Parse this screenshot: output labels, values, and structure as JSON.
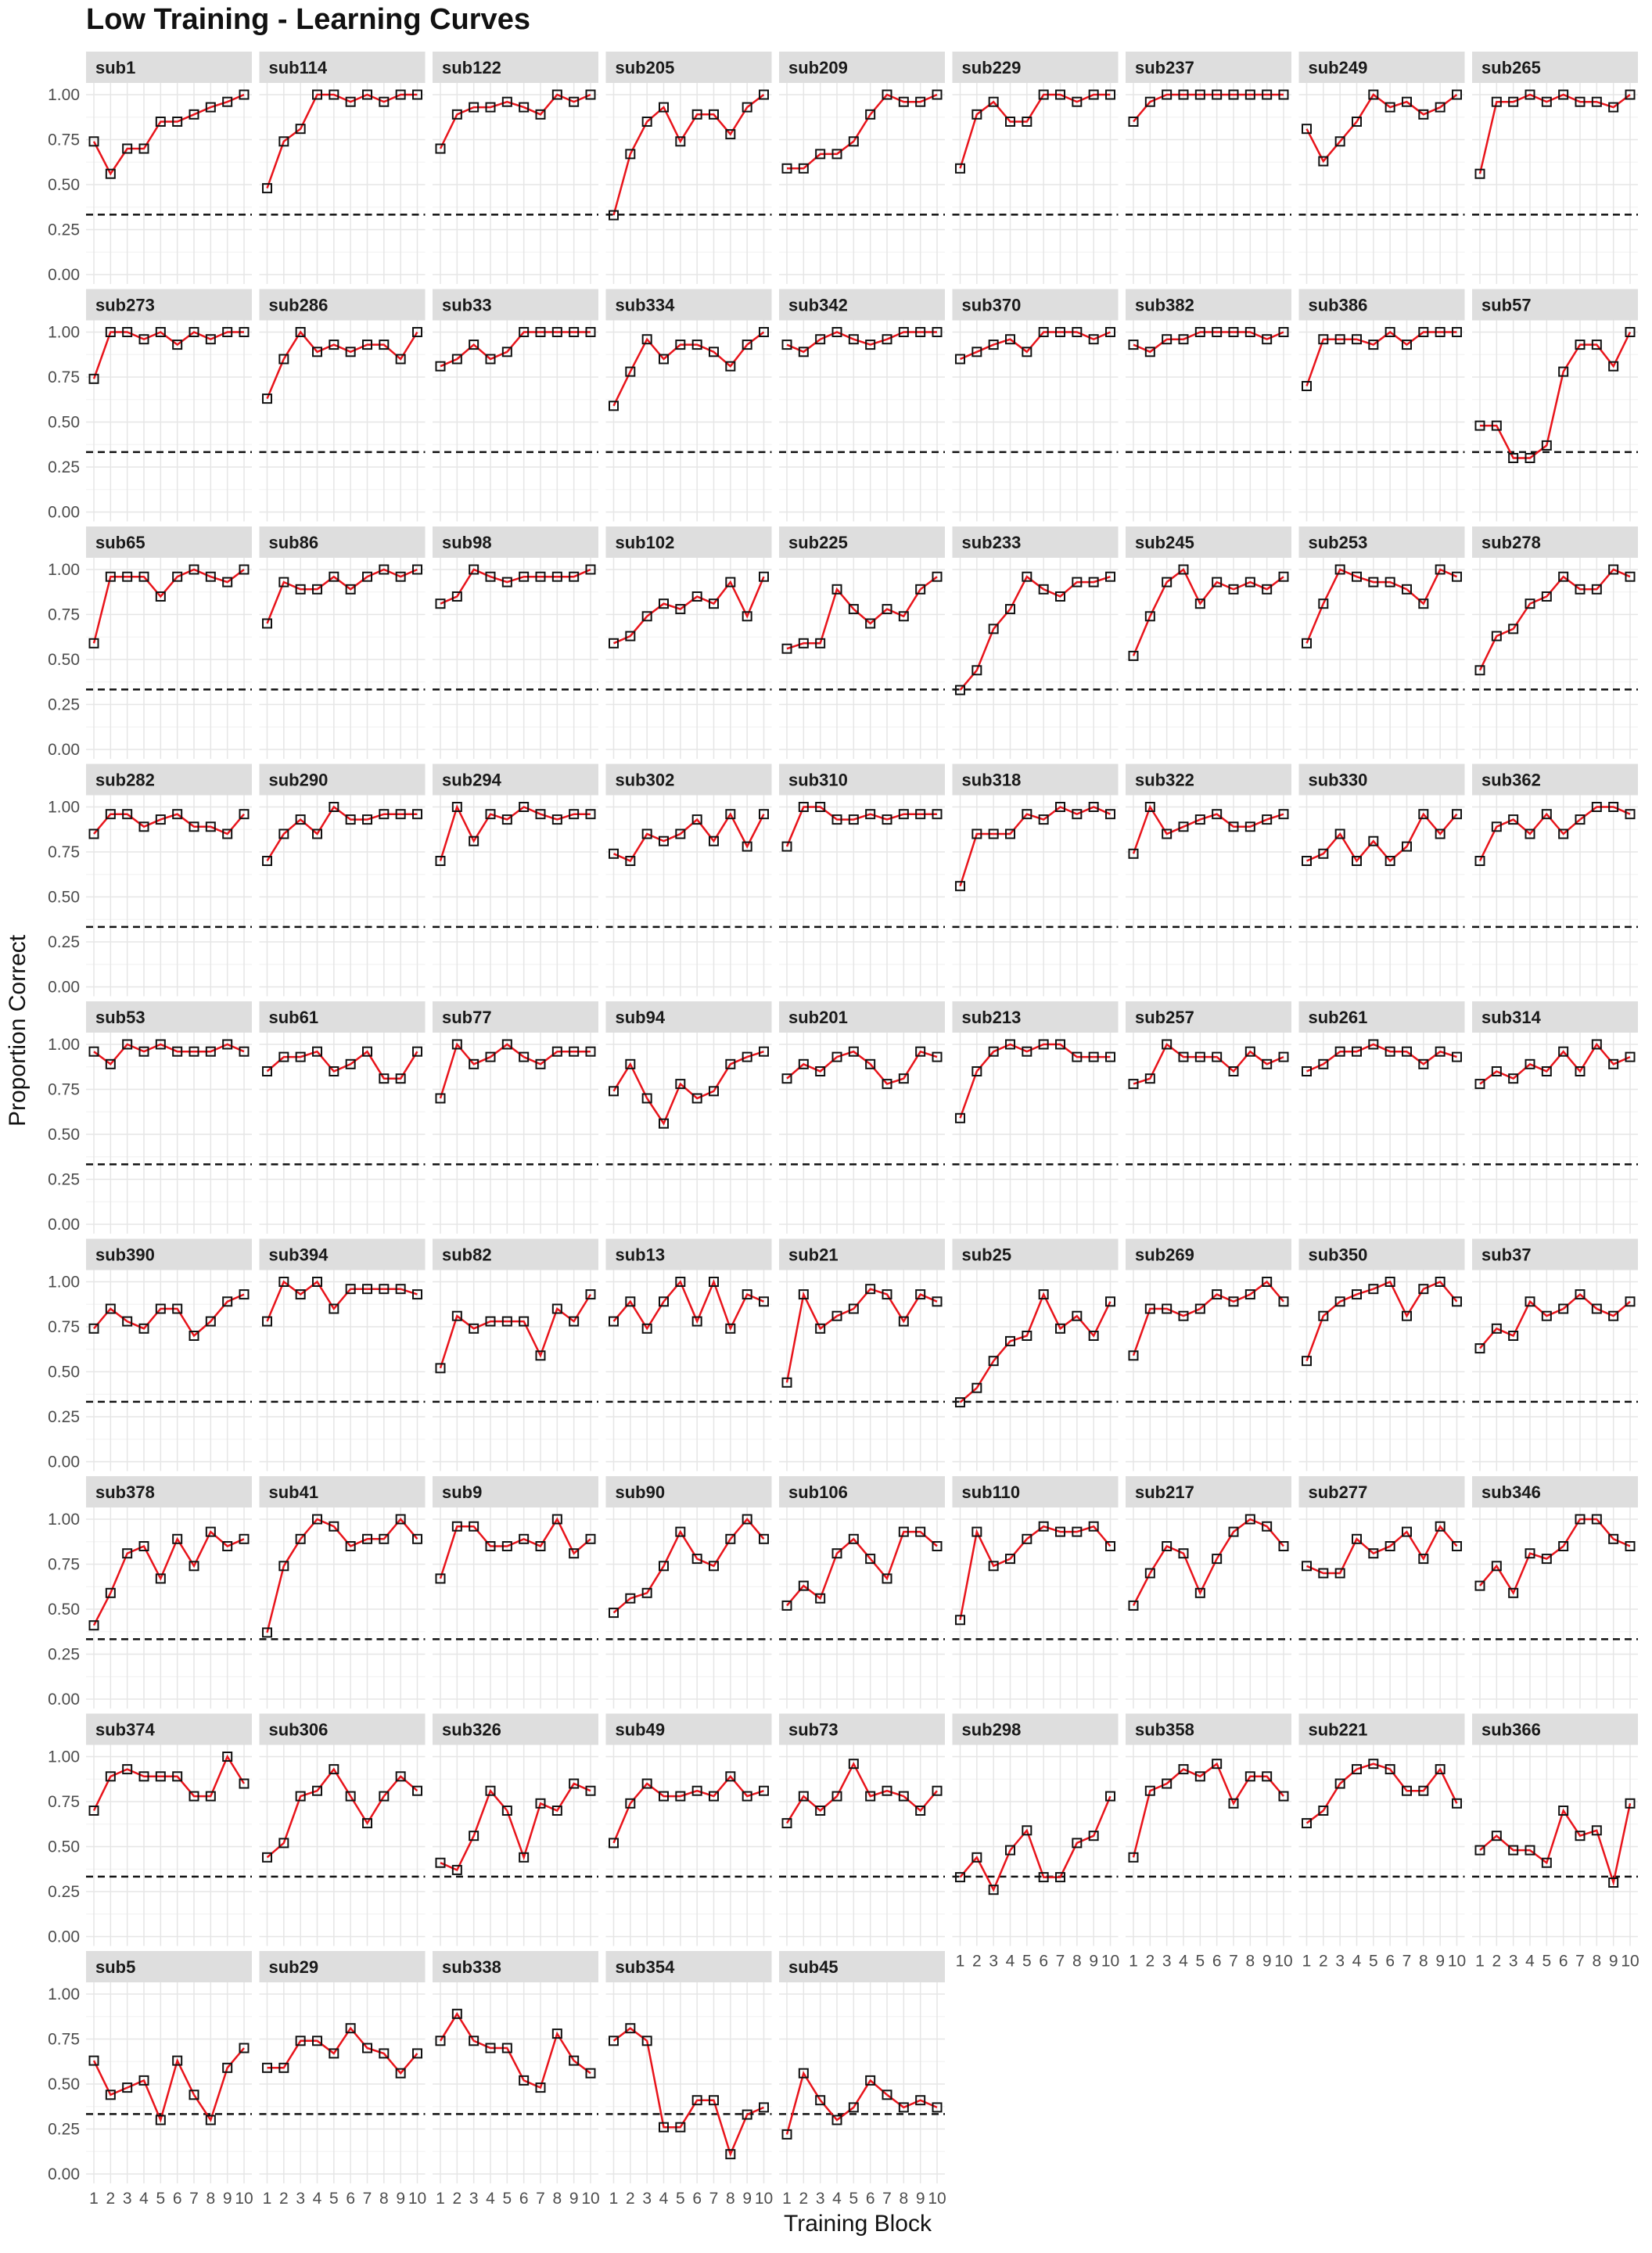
{
  "chart_data": {
    "type": "line",
    "title": "Low Training - Learning Curves",
    "xlabel": "Training Block",
    "ylabel": "Proportion Correct",
    "x": [
      1,
      2,
      3,
      4,
      5,
      6,
      7,
      8,
      9,
      10
    ],
    "x_tick_labels": [
      "1",
      "2",
      "3",
      "4",
      "5",
      "6",
      "7",
      "8",
      "9",
      "10"
    ],
    "y_ticks": [
      "0.00",
      "0.25",
      "0.50",
      "0.75",
      "1.00"
    ],
    "ylim": [
      0,
      1
    ],
    "chance_level": 0.333,
    "chance_style": "dashed",
    "line_color": "#e8141b",
    "point_style": "open square",
    "grid": true,
    "panels": [
      {
        "name": "sub1",
        "values": [
          0.74,
          0.56,
          0.7,
          0.7,
          0.85,
          0.85,
          0.89,
          0.93,
          0.96,
          1.0
        ]
      },
      {
        "name": "sub114",
        "values": [
          0.48,
          0.74,
          0.81,
          1.0,
          1.0,
          0.96,
          1.0,
          0.96,
          1.0,
          1.0
        ]
      },
      {
        "name": "sub122",
        "values": [
          0.7,
          0.89,
          0.93,
          0.93,
          0.96,
          0.93,
          0.89,
          1.0,
          0.96,
          1.0
        ]
      },
      {
        "name": "sub205",
        "values": [
          0.33,
          0.67,
          0.85,
          0.93,
          0.74,
          0.89,
          0.89,
          0.78,
          0.93,
          1.0
        ]
      },
      {
        "name": "sub209",
        "values": [
          0.59,
          0.59,
          0.67,
          0.67,
          0.74,
          0.89,
          1.0,
          0.96,
          0.96,
          1.0
        ]
      },
      {
        "name": "sub229",
        "values": [
          0.59,
          0.89,
          0.96,
          0.85,
          0.85,
          1.0,
          1.0,
          0.96,
          1.0,
          1.0
        ]
      },
      {
        "name": "sub237",
        "values": [
          0.85,
          0.96,
          1.0,
          1.0,
          1.0,
          1.0,
          1.0,
          1.0,
          1.0,
          1.0
        ]
      },
      {
        "name": "sub249",
        "values": [
          0.81,
          0.63,
          0.74,
          0.85,
          1.0,
          0.93,
          0.96,
          0.89,
          0.93,
          1.0
        ]
      },
      {
        "name": "sub265",
        "values": [
          0.56,
          0.96,
          0.96,
          1.0,
          0.96,
          1.0,
          0.96,
          0.96,
          0.93,
          1.0
        ]
      },
      {
        "name": "sub273",
        "values": [
          0.74,
          1.0,
          1.0,
          0.96,
          1.0,
          0.93,
          1.0,
          0.96,
          1.0,
          1.0
        ]
      },
      {
        "name": "sub286",
        "values": [
          0.63,
          0.85,
          1.0,
          0.89,
          0.93,
          0.89,
          0.93,
          0.93,
          0.85,
          1.0
        ]
      },
      {
        "name": "sub33",
        "values": [
          0.81,
          0.85,
          0.93,
          0.85,
          0.89,
          1.0,
          1.0,
          1.0,
          1.0,
          1.0
        ]
      },
      {
        "name": "sub334",
        "values": [
          0.59,
          0.78,
          0.96,
          0.85,
          0.93,
          0.93,
          0.89,
          0.81,
          0.93,
          1.0
        ]
      },
      {
        "name": "sub342",
        "values": [
          0.93,
          0.89,
          0.96,
          1.0,
          0.96,
          0.93,
          0.96,
          1.0,
          1.0,
          1.0
        ]
      },
      {
        "name": "sub370",
        "values": [
          0.85,
          0.89,
          0.93,
          0.96,
          0.89,
          1.0,
          1.0,
          1.0,
          0.96,
          1.0
        ]
      },
      {
        "name": "sub382",
        "values": [
          0.93,
          0.89,
          0.96,
          0.96,
          1.0,
          1.0,
          1.0,
          1.0,
          0.96,
          1.0
        ]
      },
      {
        "name": "sub386",
        "values": [
          0.7,
          0.96,
          0.96,
          0.96,
          0.93,
          1.0,
          0.93,
          1.0,
          1.0,
          1.0
        ]
      },
      {
        "name": "sub57",
        "values": [
          0.48,
          0.48,
          0.3,
          0.3,
          0.37,
          0.78,
          0.93,
          0.93,
          0.81,
          1.0
        ]
      },
      {
        "name": "sub65",
        "values": [
          0.59,
          0.96,
          0.96,
          0.96,
          0.85,
          0.96,
          1.0,
          0.96,
          0.93,
          1.0
        ]
      },
      {
        "name": "sub86",
        "values": [
          0.7,
          0.93,
          0.89,
          0.89,
          0.96,
          0.89,
          0.96,
          1.0,
          0.96,
          1.0
        ]
      },
      {
        "name": "sub98",
        "values": [
          0.81,
          0.85,
          1.0,
          0.96,
          0.93,
          0.96,
          0.96,
          0.96,
          0.96,
          1.0
        ]
      },
      {
        "name": "sub102",
        "values": [
          0.59,
          0.63,
          0.74,
          0.81,
          0.78,
          0.85,
          0.81,
          0.93,
          0.74,
          0.96
        ]
      },
      {
        "name": "sub225",
        "values": [
          0.56,
          0.59,
          0.59,
          0.89,
          0.78,
          0.7,
          0.78,
          0.74,
          0.89,
          0.96
        ]
      },
      {
        "name": "sub233",
        "values": [
          0.33,
          0.44,
          0.67,
          0.78,
          0.96,
          0.89,
          0.85,
          0.93,
          0.93,
          0.96
        ]
      },
      {
        "name": "sub245",
        "values": [
          0.52,
          0.74,
          0.93,
          1.0,
          0.81,
          0.93,
          0.89,
          0.93,
          0.89,
          0.96
        ]
      },
      {
        "name": "sub253",
        "values": [
          0.59,
          0.81,
          1.0,
          0.96,
          0.93,
          0.93,
          0.89,
          0.81,
          1.0,
          0.96
        ]
      },
      {
        "name": "sub278",
        "values": [
          0.44,
          0.63,
          0.67,
          0.81,
          0.85,
          0.96,
          0.89,
          0.89,
          1.0,
          0.96
        ]
      },
      {
        "name": "sub282",
        "values": [
          0.85,
          0.96,
          0.96,
          0.89,
          0.93,
          0.96,
          0.89,
          0.89,
          0.85,
          0.96
        ]
      },
      {
        "name": "sub290",
        "values": [
          0.7,
          0.85,
          0.93,
          0.85,
          1.0,
          0.93,
          0.93,
          0.96,
          0.96,
          0.96
        ]
      },
      {
        "name": "sub294",
        "values": [
          0.7,
          1.0,
          0.81,
          0.96,
          0.93,
          1.0,
          0.96,
          0.93,
          0.96,
          0.96
        ]
      },
      {
        "name": "sub302",
        "values": [
          0.74,
          0.7,
          0.85,
          0.81,
          0.85,
          0.93,
          0.81,
          0.96,
          0.78,
          0.96
        ]
      },
      {
        "name": "sub310",
        "values": [
          0.78,
          1.0,
          1.0,
          0.93,
          0.93,
          0.96,
          0.93,
          0.96,
          0.96,
          0.96
        ]
      },
      {
        "name": "sub318",
        "values": [
          0.56,
          0.85,
          0.85,
          0.85,
          0.96,
          0.93,
          1.0,
          0.96,
          1.0,
          0.96
        ]
      },
      {
        "name": "sub322",
        "values": [
          0.74,
          1.0,
          0.85,
          0.89,
          0.93,
          0.96,
          0.89,
          0.89,
          0.93,
          0.96
        ]
      },
      {
        "name": "sub330",
        "values": [
          0.7,
          0.74,
          0.85,
          0.7,
          0.81,
          0.7,
          0.78,
          0.96,
          0.85,
          0.96
        ]
      },
      {
        "name": "sub362",
        "values": [
          0.7,
          0.89,
          0.93,
          0.85,
          0.96,
          0.85,
          0.93,
          1.0,
          1.0,
          0.96
        ]
      },
      {
        "name": "sub53",
        "values": [
          0.96,
          0.89,
          1.0,
          0.96,
          1.0,
          0.96,
          0.96,
          0.96,
          1.0,
          0.96
        ]
      },
      {
        "name": "sub61",
        "values": [
          0.85,
          0.93,
          0.93,
          0.96,
          0.85,
          0.89,
          0.96,
          0.81,
          0.81,
          0.96
        ]
      },
      {
        "name": "sub77",
        "values": [
          0.7,
          1.0,
          0.89,
          0.93,
          1.0,
          0.93,
          0.89,
          0.96,
          0.96,
          0.96
        ]
      },
      {
        "name": "sub94",
        "values": [
          0.74,
          0.89,
          0.7,
          0.56,
          0.78,
          0.7,
          0.74,
          0.89,
          0.93,
          0.96
        ]
      },
      {
        "name": "sub201",
        "values": [
          0.81,
          0.89,
          0.85,
          0.93,
          0.96,
          0.89,
          0.78,
          0.81,
          0.96,
          0.93
        ]
      },
      {
        "name": "sub213",
        "values": [
          0.59,
          0.85,
          0.96,
          1.0,
          0.96,
          1.0,
          1.0,
          0.93,
          0.93,
          0.93
        ]
      },
      {
        "name": "sub257",
        "values": [
          0.78,
          0.81,
          1.0,
          0.93,
          0.93,
          0.93,
          0.85,
          0.96,
          0.89,
          0.93
        ]
      },
      {
        "name": "sub261",
        "values": [
          0.85,
          0.89,
          0.96,
          0.96,
          1.0,
          0.96,
          0.96,
          0.89,
          0.96,
          0.93
        ]
      },
      {
        "name": "sub314",
        "values": [
          0.78,
          0.85,
          0.81,
          0.89,
          0.85,
          0.96,
          0.85,
          1.0,
          0.89,
          0.93
        ]
      },
      {
        "name": "sub390",
        "values": [
          0.74,
          0.85,
          0.78,
          0.74,
          0.85,
          0.85,
          0.7,
          0.78,
          0.89,
          0.93
        ]
      },
      {
        "name": "sub394",
        "values": [
          0.78,
          1.0,
          0.93,
          1.0,
          0.85,
          0.96,
          0.96,
          0.96,
          0.96,
          0.93
        ]
      },
      {
        "name": "sub82",
        "values": [
          0.52,
          0.81,
          0.74,
          0.78,
          0.78,
          0.78,
          0.59,
          0.85,
          0.78,
          0.93
        ]
      },
      {
        "name": "sub13",
        "values": [
          0.78,
          0.89,
          0.74,
          0.89,
          1.0,
          0.78,
          1.0,
          0.74,
          0.93,
          0.89
        ]
      },
      {
        "name": "sub21",
        "values": [
          0.44,
          0.93,
          0.74,
          0.81,
          0.85,
          0.96,
          0.93,
          0.78,
          0.93,
          0.89
        ]
      },
      {
        "name": "sub25",
        "values": [
          0.33,
          0.41,
          0.56,
          0.67,
          0.7,
          0.93,
          0.74,
          0.81,
          0.7,
          0.89
        ]
      },
      {
        "name": "sub269",
        "values": [
          0.59,
          0.85,
          0.85,
          0.81,
          0.85,
          0.93,
          0.89,
          0.93,
          1.0,
          0.89
        ]
      },
      {
        "name": "sub350",
        "values": [
          0.56,
          0.81,
          0.89,
          0.93,
          0.96,
          1.0,
          0.81,
          0.96,
          1.0,
          0.89
        ]
      },
      {
        "name": "sub37",
        "values": [
          0.63,
          0.74,
          0.7,
          0.89,
          0.81,
          0.85,
          0.93,
          0.85,
          0.81,
          0.89
        ]
      },
      {
        "name": "sub378",
        "values": [
          0.41,
          0.59,
          0.81,
          0.85,
          0.67,
          0.89,
          0.74,
          0.93,
          0.85,
          0.89
        ]
      },
      {
        "name": "sub41",
        "values": [
          0.37,
          0.74,
          0.89,
          1.0,
          0.96,
          0.85,
          0.89,
          0.89,
          1.0,
          0.89
        ]
      },
      {
        "name": "sub9",
        "values": [
          0.67,
          0.96,
          0.96,
          0.85,
          0.85,
          0.89,
          0.85,
          1.0,
          0.81,
          0.89
        ]
      },
      {
        "name": "sub90",
        "values": [
          0.48,
          0.56,
          0.59,
          0.74,
          0.93,
          0.78,
          0.74,
          0.89,
          1.0,
          0.89
        ]
      },
      {
        "name": "sub106",
        "values": [
          0.52,
          0.63,
          0.56,
          0.81,
          0.89,
          0.78,
          0.67,
          0.93,
          0.93,
          0.85
        ]
      },
      {
        "name": "sub110",
        "values": [
          0.44,
          0.93,
          0.74,
          0.78,
          0.89,
          0.96,
          0.93,
          0.93,
          0.96,
          0.85
        ]
      },
      {
        "name": "sub217",
        "values": [
          0.52,
          0.7,
          0.85,
          0.81,
          0.59,
          0.78,
          0.93,
          1.0,
          0.96,
          0.85
        ]
      },
      {
        "name": "sub277",
        "values": [
          0.74,
          0.7,
          0.7,
          0.89,
          0.81,
          0.85,
          0.93,
          0.78,
          0.96,
          0.85
        ]
      },
      {
        "name": "sub346",
        "values": [
          0.63,
          0.74,
          0.59,
          0.81,
          0.78,
          0.85,
          1.0,
          1.0,
          0.89,
          0.85
        ]
      },
      {
        "name": "sub374",
        "values": [
          0.7,
          0.89,
          0.93,
          0.89,
          0.89,
          0.89,
          0.78,
          0.78,
          1.0,
          0.85
        ]
      },
      {
        "name": "sub306",
        "values": [
          0.44,
          0.52,
          0.78,
          0.81,
          0.93,
          0.78,
          0.63,
          0.78,
          0.89,
          0.81
        ]
      },
      {
        "name": "sub326",
        "values": [
          0.41,
          0.37,
          0.56,
          0.81,
          0.7,
          0.44,
          0.74,
          0.7,
          0.85,
          0.81
        ]
      },
      {
        "name": "sub49",
        "values": [
          0.52,
          0.74,
          0.85,
          0.78,
          0.78,
          0.81,
          0.78,
          0.89,
          0.78,
          0.81
        ]
      },
      {
        "name": "sub73",
        "values": [
          0.63,
          0.78,
          0.7,
          0.78,
          0.96,
          0.78,
          0.81,
          0.78,
          0.7,
          0.81
        ]
      },
      {
        "name": "sub298",
        "values": [
          0.33,
          0.44,
          0.26,
          0.48,
          0.59,
          0.33,
          0.33,
          0.52,
          0.56,
          0.78
        ]
      },
      {
        "name": "sub358",
        "values": [
          0.44,
          0.81,
          0.85,
          0.93,
          0.89,
          0.96,
          0.74,
          0.89,
          0.89,
          0.78
        ]
      },
      {
        "name": "sub221",
        "values": [
          0.63,
          0.7,
          0.85,
          0.93,
          0.96,
          0.93,
          0.81,
          0.81,
          0.93,
          0.74
        ]
      },
      {
        "name": "sub366",
        "values": [
          0.48,
          0.56,
          0.48,
          0.48,
          0.41,
          0.7,
          0.56,
          0.59,
          0.3,
          0.74
        ]
      },
      {
        "name": "sub5",
        "values": [
          0.63,
          0.44,
          0.48,
          0.52,
          0.3,
          0.63,
          0.44,
          0.3,
          0.59,
          0.7
        ]
      },
      {
        "name": "sub29",
        "values": [
          0.59,
          0.59,
          0.74,
          0.74,
          0.67,
          0.81,
          0.7,
          0.67,
          0.56,
          0.67
        ]
      },
      {
        "name": "sub338",
        "values": [
          0.74,
          0.89,
          0.74,
          0.7,
          0.7,
          0.52,
          0.48,
          0.78,
          0.63,
          0.56
        ]
      },
      {
        "name": "sub354",
        "values": [
          0.74,
          0.81,
          0.74,
          0.26,
          0.26,
          0.41,
          0.41,
          0.11,
          0.33,
          0.37
        ]
      },
      {
        "name": "sub45",
        "values": [
          0.22,
          0.56,
          0.41,
          0.3,
          0.37,
          0.52,
          0.44,
          0.37,
          0.41,
          0.37
        ]
      }
    ]
  }
}
